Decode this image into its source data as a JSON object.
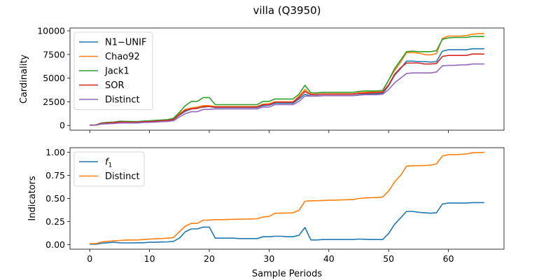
{
  "title": "villa (Q3950)",
  "chart_data": [
    {
      "type": "line",
      "xlabel": "",
      "ylabel": "Cardinality",
      "xlim": [
        -3.3,
        69.3
      ],
      "ylim": [
        -500,
        10300
      ],
      "xticks": [
        0,
        10,
        20,
        30,
        40,
        50,
        60
      ],
      "yticks": [
        0,
        2500,
        5000,
        7500,
        10000
      ],
      "ytick_labels": [
        "0",
        "2500",
        "5000",
        "7500",
        "10000"
      ],
      "legend_position": "upper-left",
      "x": [
        0,
        1,
        2,
        3,
        4,
        5,
        6,
        7,
        8,
        9,
        10,
        11,
        12,
        13,
        14,
        15,
        16,
        17,
        18,
        19,
        20,
        21,
        22,
        23,
        24,
        25,
        26,
        27,
        28,
        29,
        30,
        31,
        32,
        33,
        34,
        35,
        36,
        37,
        38,
        39,
        40,
        41,
        42,
        43,
        44,
        45,
        46,
        47,
        48,
        49,
        50,
        51,
        52,
        53,
        54,
        55,
        56,
        57,
        58,
        59,
        60,
        61,
        62,
        63,
        64,
        65,
        66
      ],
      "series": [
        {
          "name": "N1−UNIF",
          "color": "#1f77b4",
          "values": [
            30,
            40,
            200,
            250,
            280,
            350,
            340,
            330,
            320,
            380,
            400,
            420,
            480,
            520,
            600,
            1100,
            1500,
            1750,
            1850,
            1950,
            2000,
            1900,
            1900,
            1900,
            1900,
            1900,
            1900,
            1900,
            1900,
            2100,
            2150,
            2350,
            2350,
            2350,
            2350,
            2800,
            3300,
            3100,
            3150,
            3150,
            3150,
            3150,
            3150,
            3150,
            3150,
            3250,
            3300,
            3350,
            3350,
            3400,
            4200,
            5300,
            6000,
            6800,
            6800,
            6750,
            6750,
            6700,
            6750,
            7850,
            8000,
            8000,
            8000,
            8000,
            8100,
            8100,
            8100
          ]
        },
        {
          "name": "Chao92",
          "color": "#ff7f0e",
          "values": [
            30,
            50,
            250,
            300,
            330,
            400,
            390,
            380,
            370,
            430,
            450,
            480,
            520,
            560,
            650,
            1250,
            1700,
            1850,
            1950,
            2100,
            2100,
            2000,
            2000,
            2000,
            2000,
            2000,
            2000,
            2000,
            2000,
            2250,
            2300,
            2500,
            2500,
            2500,
            2500,
            3100,
            3800,
            3300,
            3300,
            3350,
            3350,
            3350,
            3350,
            3350,
            3350,
            3450,
            3500,
            3550,
            3550,
            3600,
            4800,
            5800,
            6700,
            7700,
            7700,
            7650,
            7500,
            7450,
            7600,
            9200,
            9450,
            9450,
            9450,
            9500,
            9650,
            9700,
            9700
          ]
        },
        {
          "name": "Jack1",
          "color": "#2ca02c",
          "values": [
            40,
            60,
            280,
            330,
            360,
            450,
            430,
            420,
            410,
            470,
            500,
            540,
            580,
            620,
            750,
            1400,
            2100,
            2550,
            2550,
            2950,
            2950,
            2200,
            2200,
            2200,
            2200,
            2200,
            2200,
            2200,
            2200,
            2550,
            2550,
            2800,
            2800,
            2800,
            2800,
            3300,
            4250,
            3450,
            3450,
            3500,
            3500,
            3500,
            3500,
            3500,
            3500,
            3600,
            3650,
            3650,
            3650,
            3700,
            4800,
            6000,
            6900,
            7800,
            7850,
            7800,
            7800,
            7800,
            7900,
            9100,
            9250,
            9300,
            9300,
            9300,
            9400,
            9400,
            9400
          ]
        },
        {
          "name": "SOR",
          "color": "#d62728",
          "values": [
            30,
            40,
            220,
            270,
            300,
            370,
            360,
            350,
            340,
            400,
            420,
            450,
            500,
            540,
            630,
            1150,
            1600,
            1750,
            1800,
            2000,
            2000,
            1950,
            1950,
            1950,
            1950,
            1950,
            1950,
            1950,
            1950,
            2200,
            2200,
            2450,
            2450,
            2450,
            2450,
            2950,
            3600,
            3250,
            3300,
            3300,
            3300,
            3300,
            3300,
            3300,
            3300,
            3400,
            3400,
            3450,
            3450,
            3500,
            4300,
            5400,
            6100,
            6600,
            6600,
            6600,
            6500,
            6500,
            6550,
            7300,
            7400,
            7400,
            7400,
            7400,
            7550,
            7550,
            7550
          ]
        },
        {
          "name": "Distinct",
          "color": "#9467bd",
          "values": [
            20,
            30,
            150,
            180,
            200,
            260,
            260,
            260,
            260,
            320,
            330,
            360,
            400,
            430,
            500,
            900,
            1250,
            1450,
            1450,
            1700,
            1700,
            1750,
            1750,
            1750,
            1750,
            1750,
            1750,
            1750,
            1750,
            1950,
            1950,
            2200,
            2200,
            2200,
            2200,
            2550,
            3100,
            3100,
            3100,
            3150,
            3150,
            3150,
            3150,
            3150,
            3150,
            3200,
            3250,
            3250,
            3250,
            3300,
            3800,
            4500,
            5000,
            5500,
            5550,
            5550,
            5550,
            5550,
            5650,
            6300,
            6350,
            6350,
            6400,
            6400,
            6500,
            6500,
            6500
          ]
        }
      ]
    },
    {
      "type": "line",
      "xlabel": "Sample Periods",
      "ylabel": "Indicators",
      "xlim": [
        -3.3,
        69.3
      ],
      "ylim": [
        -0.05,
        1.05
      ],
      "xticks": [
        0,
        10,
        20,
        30,
        40,
        50,
        60
      ],
      "yticks": [
        0,
        0.25,
        0.5,
        0.75,
        1.0
      ],
      "ytick_labels": [
        "0.00",
        "0.25",
        "0.50",
        "0.75",
        "1.00"
      ],
      "xtick_labels": [
        "0",
        "10",
        "20",
        "30",
        "40",
        "50",
        "60"
      ],
      "legend_position": "upper-left",
      "x": [
        0,
        1,
        2,
        3,
        4,
        5,
        6,
        7,
        8,
        9,
        10,
        11,
        12,
        13,
        14,
        15,
        16,
        17,
        18,
        19,
        20,
        21,
        22,
        23,
        24,
        25,
        26,
        27,
        28,
        29,
        30,
        31,
        32,
        33,
        34,
        35,
        36,
        37,
        38,
        39,
        40,
        41,
        42,
        43,
        44,
        45,
        46,
        47,
        48,
        49,
        50,
        51,
        52,
        53,
        54,
        55,
        56,
        57,
        58,
        59,
        60,
        61,
        62,
        63,
        64,
        65,
        66
      ],
      "series": [
        {
          "name": "f1",
          "color": "#1f77b4",
          "values": [
            0.005,
            0.003,
            0.015,
            0.02,
            0.025,
            0.02,
            0.018,
            0.018,
            0.02,
            0.02,
            0.025,
            0.025,
            0.028,
            0.03,
            0.035,
            0.07,
            0.14,
            0.17,
            0.17,
            0.19,
            0.19,
            0.07,
            0.07,
            0.07,
            0.07,
            0.065,
            0.065,
            0.065,
            0.065,
            0.085,
            0.085,
            0.09,
            0.09,
            0.085,
            0.085,
            0.1,
            0.185,
            0.05,
            0.05,
            0.055,
            0.055,
            0.055,
            0.055,
            0.055,
            0.055,
            0.06,
            0.058,
            0.055,
            0.055,
            0.055,
            0.12,
            0.22,
            0.29,
            0.36,
            0.36,
            0.35,
            0.345,
            0.34,
            0.345,
            0.44,
            0.45,
            0.45,
            0.45,
            0.45,
            0.455,
            0.455,
            0.455
          ]
        },
        {
          "name": "Distinct",
          "color": "#ff7f0e",
          "values": [
            0.01,
            0.01,
            0.03,
            0.035,
            0.04,
            0.045,
            0.048,
            0.05,
            0.05,
            0.055,
            0.06,
            0.062,
            0.065,
            0.07,
            0.075,
            0.14,
            0.2,
            0.23,
            0.23,
            0.265,
            0.265,
            0.27,
            0.27,
            0.272,
            0.274,
            0.275,
            0.276,
            0.278,
            0.28,
            0.3,
            0.305,
            0.34,
            0.34,
            0.342,
            0.345,
            0.37,
            0.47,
            0.475,
            0.476,
            0.478,
            0.48,
            0.482,
            0.484,
            0.486,
            0.488,
            0.5,
            0.505,
            0.508,
            0.51,
            0.515,
            0.58,
            0.68,
            0.75,
            0.85,
            0.855,
            0.855,
            0.857,
            0.86,
            0.875,
            0.96,
            0.975,
            0.975,
            0.978,
            0.982,
            0.995,
            0.997,
            1.0
          ]
        }
      ]
    }
  ]
}
